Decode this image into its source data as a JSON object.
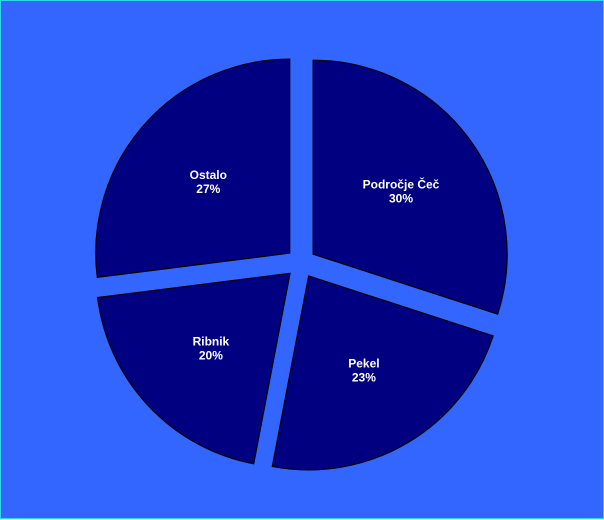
{
  "chart_data": {
    "type": "pie",
    "title": "",
    "slices": [
      {
        "name": "Področje Čeč",
        "value": 30,
        "value_label": "30%"
      },
      {
        "name": "Pekel",
        "value": 23,
        "value_label": "23%"
      },
      {
        "name": "Ribnik",
        "value": 20,
        "value_label": "20%"
      },
      {
        "name": "Ostalo",
        "value": 27,
        "value_label": "27%"
      }
    ],
    "exploded": true,
    "legend": "none",
    "colors": {
      "background": "#3366ff",
      "slice_fill": "#000080",
      "slice_stroke": "#000000",
      "label_text": "#ffffff",
      "frame_border": "#2fd6e8"
    }
  }
}
